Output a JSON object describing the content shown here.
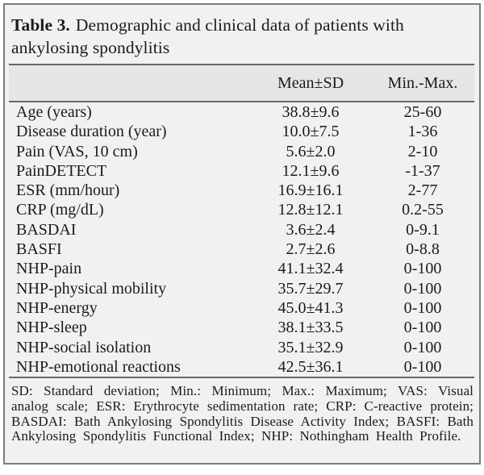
{
  "title": {
    "label": "Table 3.",
    "text": "Demographic and clinical data of patients with ankylosing spondylitis"
  },
  "table": {
    "columns": {
      "parameter": "",
      "mean_sd": "Mean±SD",
      "min_max": "Min.-Max."
    },
    "rows": [
      {
        "label": "Age (years)",
        "mean_sd": "38.8±9.6",
        "min_max": "25-60"
      },
      {
        "label": "Disease duration (year)",
        "mean_sd": "10.0±7.5",
        "min_max": "1-36"
      },
      {
        "label": "Pain (VAS, 10 cm)",
        "mean_sd": "5.6±2.0",
        "min_max": "2-10"
      },
      {
        "label": "PainDETECT",
        "mean_sd": "12.1±9.6",
        "min_max": "-1-37"
      },
      {
        "label": "ESR (mm/hour)",
        "mean_sd": "16.9±16.1",
        "min_max": "2-77"
      },
      {
        "label": "CRP (mg/dL)",
        "mean_sd": "12.8±12.1",
        "min_max": "0.2-55"
      },
      {
        "label": "BASDAI",
        "mean_sd": "3.6±2.4",
        "min_max": "0-9.1"
      },
      {
        "label": "BASFI",
        "mean_sd": "2.7±2.6",
        "min_max": "0-8.8"
      },
      {
        "label": "NHP-pain",
        "mean_sd": "41.1±32.4",
        "min_max": "0-100"
      },
      {
        "label": "NHP-physical mobility",
        "mean_sd": "35.7±29.7",
        "min_max": "0-100"
      },
      {
        "label": "NHP-energy",
        "mean_sd": "45.0±41.3",
        "min_max": "0-100"
      },
      {
        "label": "NHP-sleep",
        "mean_sd": "38.1±33.5",
        "min_max": "0-100"
      },
      {
        "label": "NHP-social isolation",
        "mean_sd": "35.1±32.9",
        "min_max": "0-100"
      },
      {
        "label": "NHP-emotional reactions",
        "mean_sd": "42.5±36.1",
        "min_max": "0-100"
      }
    ]
  },
  "footnote": "SD: Standard deviation; Min.: Minimum; Max.: Maximum; VAS: Visual analog scale; ESR: Erythrocyte sedimentation rate; CRP: C-reactive protein; BASDAI: Bath Ankylosing Spondylitis Disease Activity Index; BASFI: Bath Ankylosing Spondylitis Functional Index; NHP: Nothingham Health Profile.",
  "colors": {
    "page_background": "#ffffff",
    "card_background": "#f1f1ef",
    "header_band_background": "#e5e6e8",
    "border": "#7c7c7e",
    "rule": "#67676b",
    "text": "#1b1b1b"
  }
}
